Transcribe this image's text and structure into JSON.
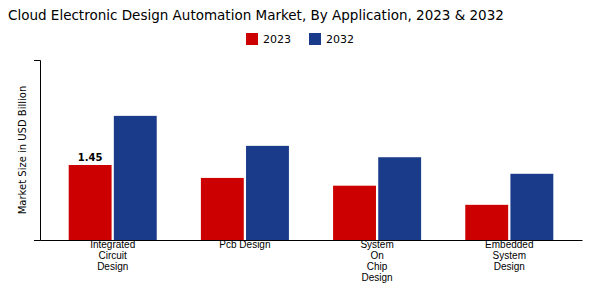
{
  "chart_data": {
    "type": "bar",
    "title": "Cloud Electronic Design Automation Market, By Application, 2023 & 2032",
    "ylabel": "Market Size in USD Billion",
    "categories": [
      "Integrated\nCircuit\nDesign",
      "Pcb Design",
      "System\nOn\nChip\nDesign",
      "Embedded\nSystem\nDesign"
    ],
    "series": [
      {
        "name": "2023",
        "color": "#cc0000",
        "values": [
          1.45,
          1.2,
          1.05,
          0.68
        ]
      },
      {
        "name": "2032",
        "color": "#1a3a8a",
        "values": [
          2.4,
          1.82,
          1.6,
          1.28
        ]
      }
    ],
    "ylim": [
      0,
      3.48
    ],
    "tick_labels": "x",
    "grid": false,
    "legend": "top",
    "annotations": [
      {
        "text": "1.45",
        "x": "Integrated\nCircuit\nDesign",
        "series": "2023",
        "y": 1.45
      }
    ]
  }
}
